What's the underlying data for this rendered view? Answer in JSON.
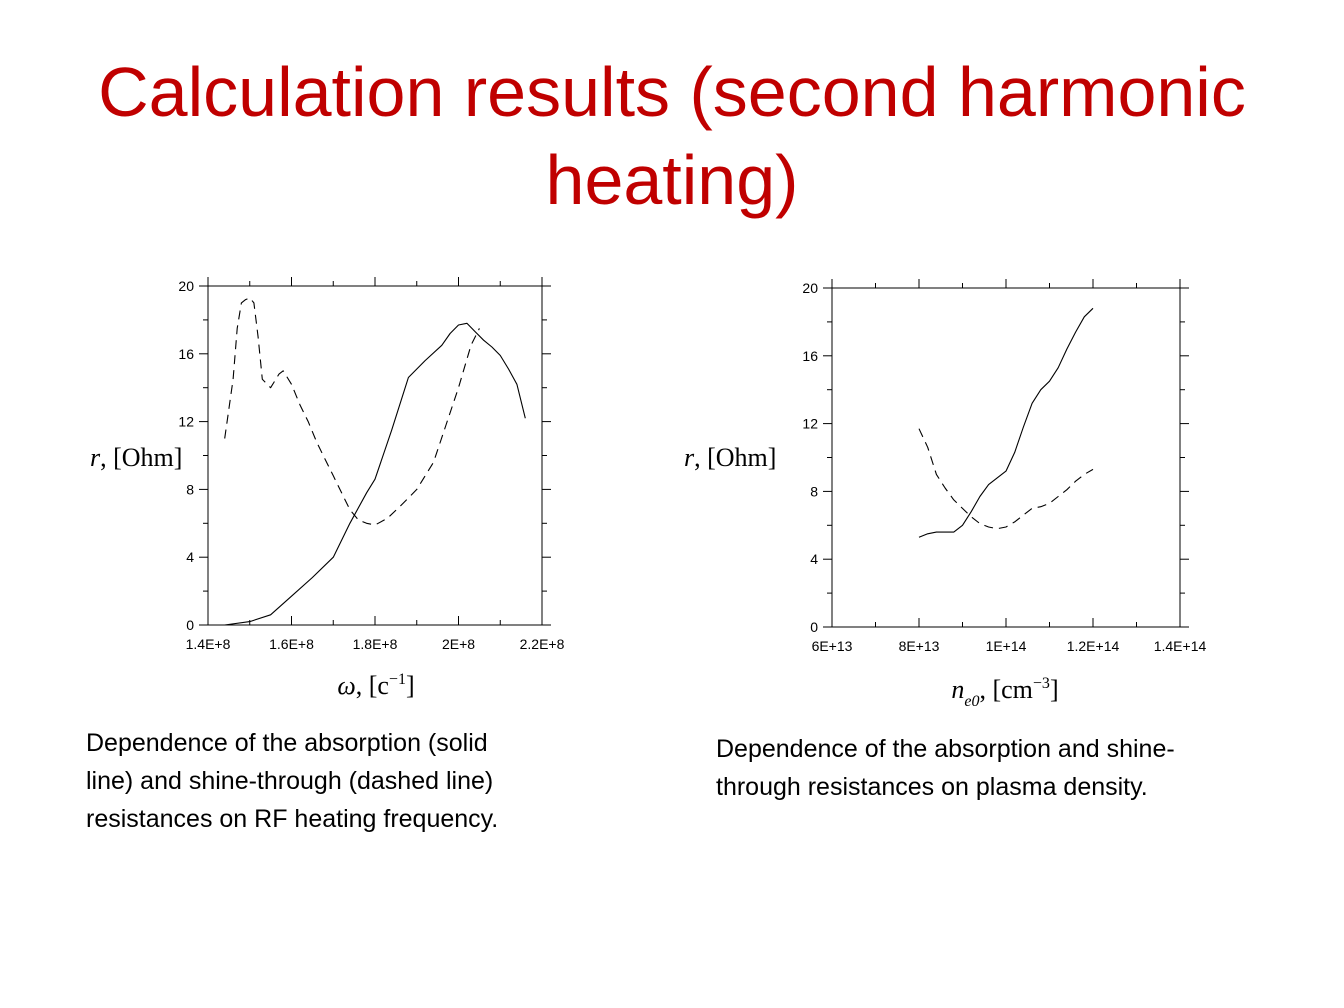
{
  "slide": {
    "title_line1": "Calculation results (second harmonic",
    "title_line2": "heating)"
  },
  "captions": {
    "left": [
      "Dependence of the absorption (solid",
      "line) and shine-through (dashed line)",
      "resistances on RF heating frequency."
    ],
    "right": [
      "Dependence of the absorption and shine-",
      "through resistances on plasma density."
    ]
  },
  "chart_data": [
    {
      "type": "line",
      "title": "",
      "xlabel_symbol": "ω",
      "xlabel_unit": "[c",
      "xlabel_sup": "−1",
      "xlabel_close": "]",
      "ylabel_symbol": "r",
      "ylabel_unit": "[Ohm]",
      "xlim": [
        140000000,
        220000000
      ],
      "ylim": [
        0,
        20
      ],
      "x_ticks": [
        140000000,
        160000000,
        180000000,
        200000000,
        220000000
      ],
      "x_tick_labels": [
        "1.4E+8",
        "1.6E+8",
        "1.8E+8",
        "2E+8",
        "2.2E+8"
      ],
      "y_ticks": [
        0,
        4,
        8,
        12,
        16,
        20
      ],
      "y_tick_labels": [
        "0",
        "4",
        "8",
        "12",
        "16",
        "20"
      ],
      "grid": false,
      "series": [
        {
          "style": "solid",
          "x": [
            144000000,
            150000000,
            155000000,
            160000000,
            165000000,
            170000000,
            174000000,
            178000000,
            180000000,
            184000000,
            188000000,
            192000000,
            196000000,
            198000000,
            200000000,
            202000000,
            204000000,
            206000000,
            208000000,
            210000000,
            212000000,
            214000000,
            216000000
          ],
          "y": [
            0,
            0.2,
            0.6,
            1.7,
            2.8,
            4.0,
            6.0,
            7.8,
            8.6,
            11.5,
            14.6,
            15.6,
            16.5,
            17.2,
            17.7,
            17.8,
            17.3,
            16.8,
            16.4,
            15.9,
            15.1,
            14.2,
            12.2
          ]
        },
        {
          "style": "dashed",
          "x": [
            144000000,
            146000000,
            147000000,
            148000000,
            149000000,
            150000000,
            151000000,
            152000000,
            153000000,
            155000000,
            157000000,
            158000000,
            160000000,
            162000000,
            164000000,
            166000000,
            168000000,
            170000000,
            172000000,
            174000000,
            176000000,
            178000000,
            180000000,
            183000000,
            186000000,
            190000000,
            194000000,
            197000000,
            200000000,
            203000000,
            205000000
          ],
          "y": [
            11,
            14.5,
            17.5,
            19.0,
            19.2,
            19.3,
            19.0,
            17.0,
            14.5,
            14.0,
            14.8,
            15.0,
            14.2,
            13.0,
            12.0,
            10.8,
            9.8,
            8.8,
            7.8,
            6.8,
            6.2,
            6.0,
            5.9,
            6.3,
            7.0,
            8.0,
            9.6,
            11.8,
            14.0,
            16.5,
            17.5
          ]
        }
      ]
    },
    {
      "type": "line",
      "title": "",
      "xlabel_symbol": "n",
      "xlabel_sub": "e0",
      "xlabel_unit": "[cm",
      "xlabel_sup": "−3",
      "xlabel_close": "]",
      "ylabel_symbol": "r",
      "ylabel_unit": "[Ohm]",
      "xlim": [
        60000000000000,
        140000000000000
      ],
      "ylim": [
        0,
        20
      ],
      "x_ticks": [
        60000000000000,
        80000000000000,
        100000000000000,
        120000000000000,
        140000000000000
      ],
      "x_tick_labels": [
        "6E+13",
        "8E+13",
        "1E+14",
        "1.2E+14",
        "1.4E+14"
      ],
      "y_ticks": [
        0,
        4,
        8,
        12,
        16,
        20
      ],
      "y_tick_labels": [
        "0",
        "4",
        "8",
        "12",
        "16",
        "20"
      ],
      "grid": false,
      "series": [
        {
          "style": "solid",
          "x": [
            80000000000000,
            82000000000000,
            84000000000000,
            86000000000000,
            88000000000000,
            90000000000000,
            92000000000000,
            94000000000000,
            96000000000000,
            98000000000000,
            100000000000000,
            102000000000000,
            104000000000000,
            106000000000000,
            108000000000000,
            110000000000000,
            112000000000000,
            114000000000000,
            116000000000000,
            118000000000000,
            120000000000000
          ],
          "y": [
            5.3,
            5.5,
            5.6,
            5.6,
            5.6,
            6.0,
            6.8,
            7.7,
            8.4,
            8.8,
            9.2,
            10.3,
            11.8,
            13.2,
            14.0,
            14.5,
            15.3,
            16.4,
            17.4,
            18.3,
            18.8
          ]
        },
        {
          "style": "dashed",
          "x": [
            80000000000000,
            82000000000000,
            84000000000000,
            86000000000000,
            88000000000000,
            90000000000000,
            92000000000000,
            94000000000000,
            96000000000000,
            98000000000000,
            100000000000000,
            102000000000000,
            104000000000000,
            106000000000000,
            108000000000000,
            110000000000000,
            112000000000000,
            114000000000000,
            116000000000000,
            118000000000000,
            120000000000000
          ],
          "y": [
            11.7,
            10.6,
            9.0,
            8.2,
            7.5,
            7.0,
            6.5,
            6.1,
            5.9,
            5.8,
            5.9,
            6.2,
            6.6,
            7.0,
            7.1,
            7.3,
            7.7,
            8.1,
            8.6,
            9.0,
            9.3
          ]
        }
      ]
    }
  ]
}
